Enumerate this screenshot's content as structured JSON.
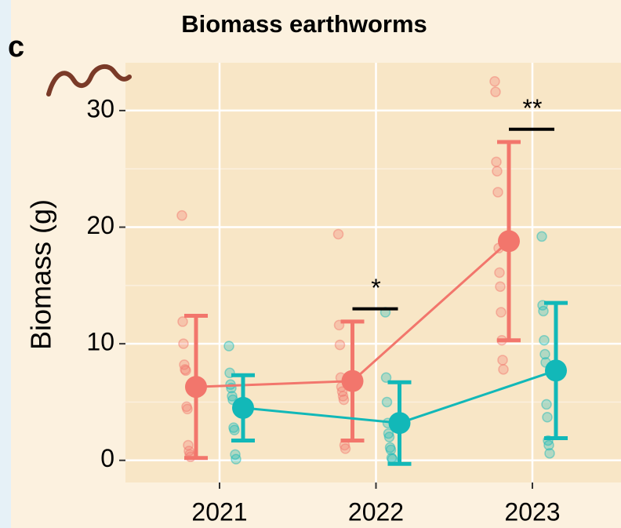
{
  "chart_data": {
    "type": "dot-errorbar",
    "panel_label": "c",
    "title": "Biomass earthworms",
    "y_label": "Biomass (g)",
    "categories": [
      "2021",
      "2022",
      "2023"
    ],
    "ylim": [
      -1.9,
      34.1
    ],
    "yticks": [
      0,
      10,
      20,
      30
    ],
    "minor_yticks": [
      5,
      15,
      25
    ],
    "grid": true,
    "series": [
      {
        "color": "#f2766c",
        "values": [
          6.3,
          6.8,
          18.8
        ],
        "errors": [
          6.1,
          5.1,
          8.5
        ],
        "points": [
          [
            21.0,
            11.9,
            10.0,
            8.2,
            7.8,
            7.7,
            4.6,
            4.4,
            1.3,
            0.8,
            0.5,
            0.3
          ],
          [
            19.4,
            11.6,
            9.9,
            7.1,
            6.3,
            5.9,
            5.5,
            5.2,
            1.3,
            1.0
          ],
          [
            32.5,
            31.6,
            25.6,
            24.8,
            23.0,
            18.2,
            16.1,
            14.9,
            12.7,
            10.3,
            8.6,
            7.8
          ]
        ]
      },
      {
        "color": "#12b8b8",
        "values": [
          4.5,
          3.2,
          7.7
        ],
        "errors": [
          2.8,
          3.5,
          5.8
        ],
        "points": [
          [
            9.8,
            7.5,
            6.5,
            6.2,
            5.5,
            5.2,
            2.8,
            2.6,
            0.5,
            0.1
          ],
          [
            12.7,
            7.1,
            5.0,
            3.2,
            2.3,
            2.0,
            1.1,
            0.9,
            0.2,
            0.1
          ],
          [
            19.2,
            13.3,
            12.8,
            10.3,
            9.1,
            8.4,
            4.8,
            3.7,
            1.7,
            1.3,
            0.6
          ]
        ]
      }
    ],
    "annotations": [
      {
        "category": 1,
        "label": "*",
        "y": 13.0
      },
      {
        "category": 2,
        "label": "**",
        "y": 28.4
      }
    ]
  }
}
